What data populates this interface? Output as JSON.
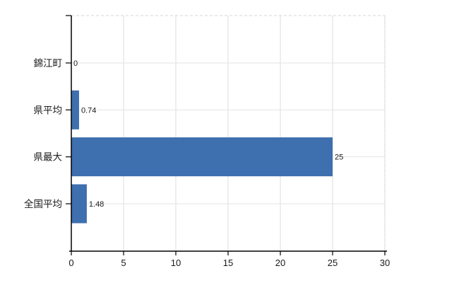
{
  "chart_data": {
    "type": "bar",
    "orientation": "horizontal",
    "title": "",
    "xlabel": "",
    "ylabel": "",
    "categories": [
      "錦江町",
      "県平均",
      "県最大",
      "全国平均"
    ],
    "values": [
      0,
      0.74,
      25,
      1.48
    ],
    "value_labels": [
      "0",
      "0.74",
      "25",
      "1.48"
    ],
    "xlim": [
      0,
      30
    ],
    "xticks": [
      0,
      5,
      10,
      15,
      20,
      25,
      30
    ],
    "xtick_labels": [
      "0",
      "5",
      "10",
      "15",
      "20",
      "25",
      "30"
    ],
    "grid": true,
    "legend": false,
    "colors": {
      "bar": "#3e6fae",
      "axis": "#000000",
      "text": "#1a1a1a",
      "gridline_vertical": "#dcdcdc",
      "gridline_horizontal": "#e2e6e0",
      "border_dashed": "#d4d4d4",
      "background": "#ffffff"
    }
  }
}
